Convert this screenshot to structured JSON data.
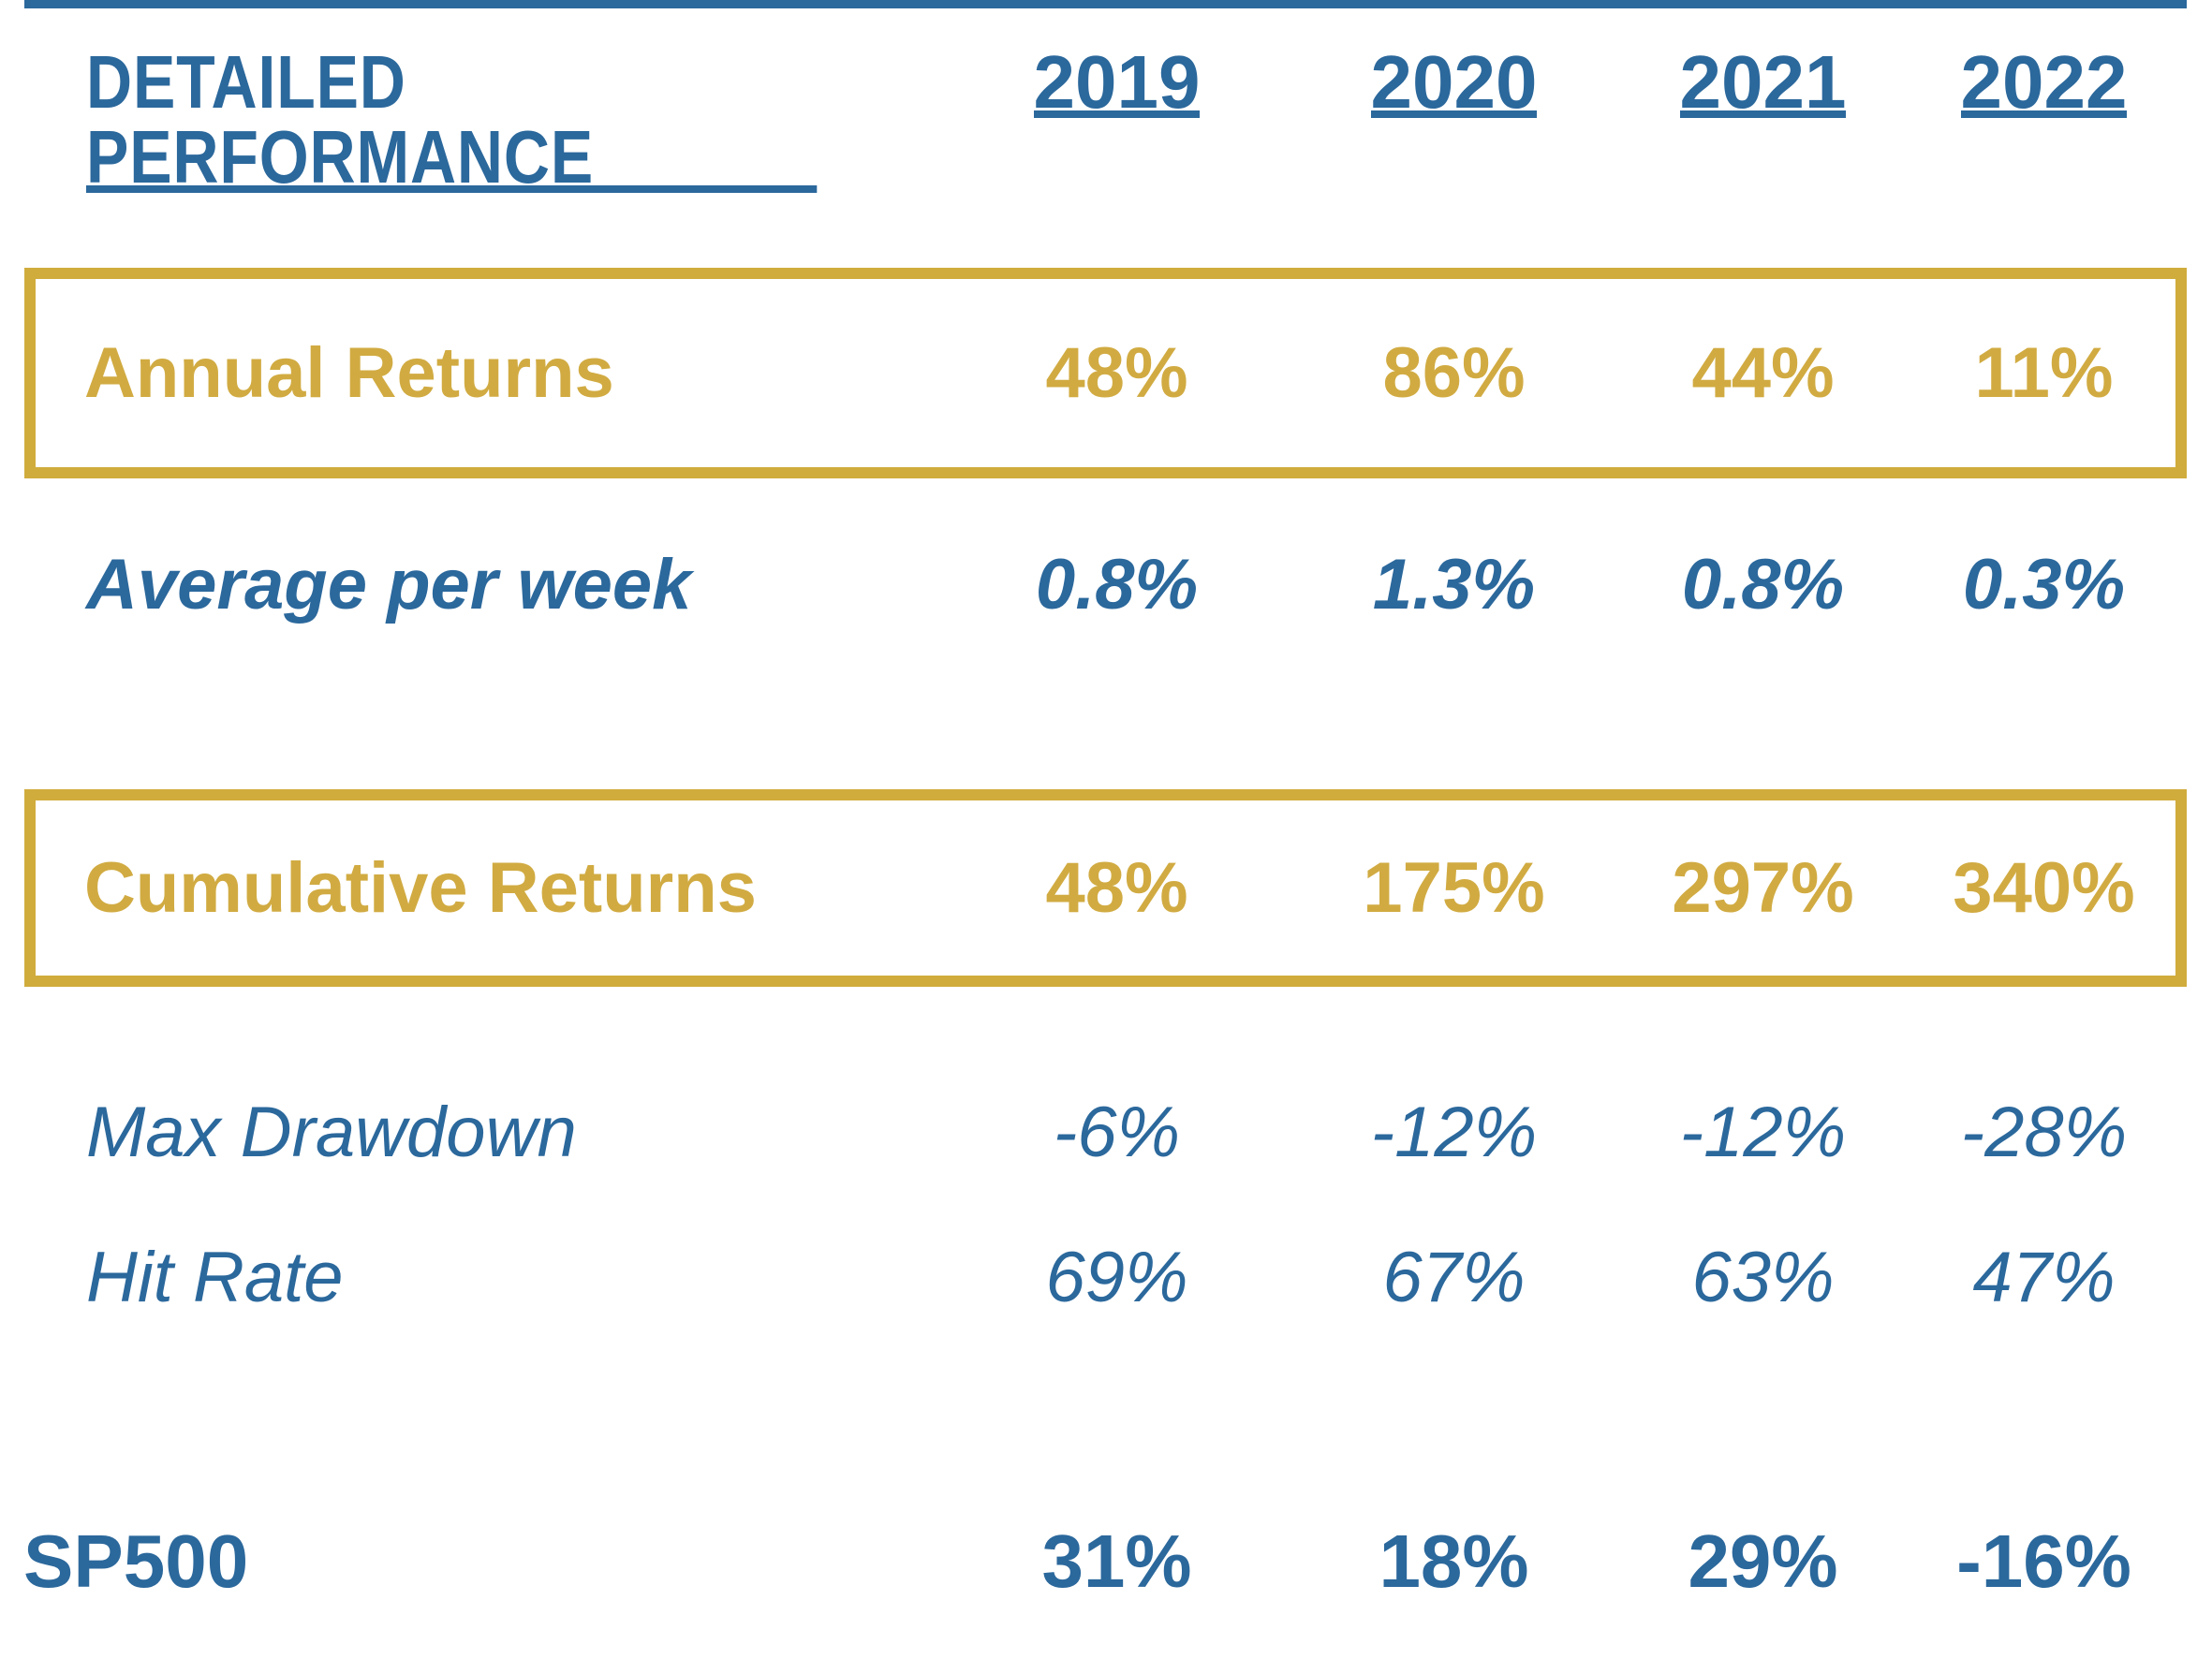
{
  "page": {
    "background": "#ffffff"
  },
  "colors": {
    "blue": "#2B689C",
    "gold_text": "#D1AB42",
    "gold_border": "#D0AC3C"
  },
  "header": {
    "title": "DETAILED PERFORMANCE",
    "years": [
      "2019",
      "2020",
      "2021",
      "2022"
    ]
  },
  "table": {
    "rows": [
      {
        "id": "annual-returns",
        "label": "Annual Returns",
        "values": [
          "48%",
          "86%",
          "44%",
          "11%"
        ],
        "emphasis": "gold-boxed"
      },
      {
        "id": "average-per-week",
        "label": "Average per week",
        "values": [
          "0.8%",
          "1.3%",
          "0.8%",
          "0.3%"
        ],
        "emphasis": "blue-bold-italic"
      },
      {
        "id": "cumulative-returns",
        "label": "Cumulative Returns",
        "values": [
          "48%",
          "175%",
          "297%",
          "340%"
        ],
        "emphasis": "gold-boxed"
      },
      {
        "id": "max-drawdown",
        "label": "Max Drawdown",
        "values": [
          "-6%",
          "-12%",
          "-12%",
          "-28%"
        ],
        "emphasis": "blue-italic"
      },
      {
        "id": "hit-rate",
        "label": "Hit Rate",
        "values": [
          "69%",
          "67%",
          "63%",
          "47%"
        ],
        "emphasis": "blue-italic"
      },
      {
        "id": "sp500",
        "label": "SP500",
        "values": [
          "31%",
          "18%",
          "29%",
          "-16%"
        ],
        "emphasis": "blue-bold-condensed"
      }
    ]
  }
}
